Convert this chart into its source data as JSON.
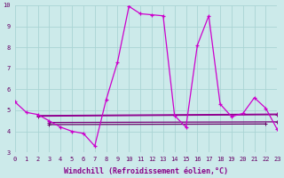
{
  "xlabel": "Windchill (Refroidissement éolien,°C)",
  "bg_color": "#cceaea",
  "grid_color": "#aad4d4",
  "line_color_main": "#cc00cc",
  "xlim": [
    0,
    23
  ],
  "ylim": [
    3,
    10
  ],
  "xticks": [
    0,
    1,
    2,
    3,
    4,
    5,
    6,
    7,
    8,
    9,
    10,
    11,
    12,
    13,
    14,
    15,
    16,
    17,
    18,
    19,
    20,
    21,
    22,
    23
  ],
  "yticks": [
    3,
    4,
    5,
    6,
    7,
    8,
    9,
    10
  ],
  "main_x": [
    0,
    1,
    2,
    3,
    4,
    5,
    6,
    7,
    8,
    9,
    10,
    11,
    12,
    13,
    14,
    15,
    16,
    17,
    18,
    19,
    20,
    21,
    22,
    23
  ],
  "main_y": [
    5.4,
    4.9,
    4.8,
    4.5,
    4.2,
    4.0,
    3.9,
    3.3,
    5.5,
    7.3,
    9.95,
    9.6,
    9.55,
    9.5,
    4.75,
    4.2,
    8.1,
    9.5,
    5.3,
    4.7,
    4.85,
    5.6,
    5.1,
    4.1
  ],
  "flat_lines": [
    {
      "x": [
        2,
        23
      ],
      "y": [
        4.75,
        4.82
      ],
      "color": "#990099"
    },
    {
      "x": [
        2,
        23
      ],
      "y": [
        4.72,
        4.79
      ],
      "color": "#880088"
    },
    {
      "x": [
        3,
        23
      ],
      "y": [
        4.42,
        4.45
      ],
      "color": "#770077"
    },
    {
      "x": [
        3,
        22
      ],
      "y": [
        4.32,
        4.35
      ],
      "color": "#660066"
    }
  ],
  "tick_color": "#660066",
  "xlabel_color": "#880088",
  "tick_fontsize": 5.0,
  "xlabel_fontsize": 6.0
}
